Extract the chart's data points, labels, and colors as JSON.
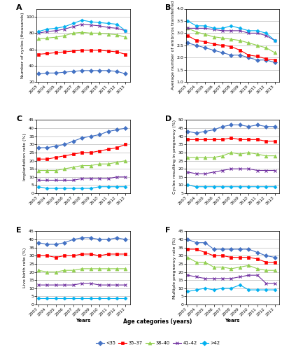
{
  "years": [
    2003,
    2004,
    2005,
    2006,
    2007,
    2008,
    2009,
    2010,
    2011,
    2012,
    2013
  ],
  "colors": {
    "<35": "#4472c4",
    "35-37": "#ff0000",
    "38-40": "#92d050",
    "41-42": "#7030a0",
    ">=42": "#00b0f0"
  },
  "A_ylabel": "Number of cycles (thousands)",
  "A_ylim": [
    20,
    110
  ],
  "A_yticks": [
    20,
    40,
    60,
    80,
    100
  ],
  "A_data": {
    "<35": [
      30,
      31,
      31,
      32,
      33,
      34,
      34,
      34,
      34,
      33,
      30
    ],
    "35-37": [
      54,
      55,
      56,
      57,
      58,
      59,
      59,
      59,
      58,
      57,
      54
    ],
    "38-40": [
      73,
      74,
      75,
      77,
      80,
      81,
      80,
      80,
      79,
      78,
      75
    ],
    "41-42": [
      80,
      82,
      83,
      85,
      88,
      91,
      90,
      89,
      87,
      86,
      83
    ],
    ">=42": [
      82,
      85,
      86,
      88,
      92,
      96,
      94,
      93,
      92,
      91,
      83
    ]
  },
  "B_ylabel": "Average number of embryos transferred",
  "B_ylim": [
    1.0,
    4.0
  ],
  "B_yticks": [
    1.0,
    1.5,
    2.0,
    2.5,
    3.0,
    3.5,
    4.0
  ],
  "B_data": {
    "<35": [
      2.6,
      2.5,
      2.4,
      2.3,
      2.2,
      2.1,
      2.1,
      2.0,
      1.9,
      1.9,
      1.8
    ],
    "35-37": [
      2.9,
      2.7,
      2.65,
      2.55,
      2.5,
      2.45,
      2.3,
      2.1,
      2.05,
      1.95,
      1.9
    ],
    "38-40": [
      3.2,
      3.05,
      2.95,
      2.85,
      2.8,
      2.75,
      2.7,
      2.6,
      2.5,
      2.4,
      2.2
    ],
    "41-42": [
      3.2,
      3.2,
      3.2,
      3.15,
      3.1,
      3.1,
      3.1,
      3.0,
      3.0,
      2.9,
      2.7
    ],
    ">=42": [
      3.5,
      3.3,
      3.3,
      3.2,
      3.2,
      3.3,
      3.2,
      3.1,
      3.1,
      3.0,
      2.7
    ]
  },
  "C_ylabel": "Implantation rate (%)",
  "C_ylim": [
    0,
    45
  ],
  "C_yticks": [
    0,
    5,
    10,
    15,
    20,
    25,
    30,
    35,
    40,
    45
  ],
  "C_data": {
    "<35": [
      28,
      28,
      29,
      30,
      32,
      34,
      35,
      36,
      38,
      39,
      40
    ],
    "35-37": [
      21,
      21,
      22,
      23,
      24,
      25,
      25,
      26,
      27,
      28,
      30
    ],
    "38-40": [
      14,
      14,
      14,
      15,
      16,
      17,
      17,
      18,
      18,
      19,
      20
    ],
    "41-42": [
      8,
      8,
      8,
      8,
      8,
      9,
      9,
      9,
      9,
      10,
      10
    ],
    ">=42": [
      4,
      3,
      3,
      3,
      3,
      3,
      3,
      4,
      4,
      4,
      4
    ]
  },
  "D_ylabel": "Cycles resulting in pregnancy (%)",
  "D_ylim": [
    5,
    50
  ],
  "D_yticks": [
    5,
    10,
    15,
    20,
    25,
    30,
    35,
    40,
    45,
    50
  ],
  "D_data": {
    "<35": [
      43,
      42,
      43,
      44,
      46,
      47,
      47,
      46,
      47,
      46,
      46
    ],
    "35-37": [
      38,
      38,
      38,
      38,
      38,
      39,
      38,
      38,
      38,
      37,
      37
    ],
    "38-40": [
      27,
      27,
      27,
      27,
      28,
      30,
      29,
      30,
      29,
      28,
      28
    ],
    "41-42": [
      18,
      17,
      17,
      18,
      19,
      20,
      20,
      20,
      19,
      19,
      19
    ],
    ">=42": [
      10,
      9,
      9,
      9,
      9,
      9,
      9,
      9,
      9,
      9,
      9
    ]
  },
  "E_ylabel": "Live birth rate (%)",
  "E_ylim": [
    0,
    45
  ],
  "E_yticks": [
    0,
    5,
    10,
    15,
    20,
    25,
    30,
    35,
    40,
    45
  ],
  "E_data": {
    "<35": [
      38,
      37,
      37,
      38,
      40,
      41,
      41,
      40,
      40,
      41,
      40
    ],
    "35-37": [
      30,
      30,
      29,
      30,
      30,
      31,
      31,
      30,
      31,
      31,
      31
    ],
    "38-40": [
      21,
      20,
      20,
      21,
      21,
      22,
      22,
      22,
      22,
      22,
      22
    ],
    "41-42": [
      12,
      12,
      12,
      12,
      12,
      13,
      13,
      12,
      12,
      12,
      12
    ],
    ">=42": [
      4,
      4,
      4,
      4,
      4,
      4,
      4,
      4,
      4,
      4,
      4
    ]
  },
  "F_ylabel": "Multiple pregnancy rate (%)",
  "F_ylim": [
    0,
    45
  ],
  "F_yticks": [
    0,
    5,
    10,
    15,
    20,
    25,
    30,
    35,
    40,
    45
  ],
  "F_data": {
    "<35": [
      40,
      38,
      38,
      34,
      34,
      34,
      34,
      34,
      32,
      30,
      29
    ],
    "35-37": [
      34,
      34,
      32,
      30,
      30,
      29,
      29,
      29,
      28,
      26,
      26
    ],
    "38-40": [
      29,
      26,
      26,
      23,
      23,
      22,
      23,
      24,
      22,
      21,
      21
    ],
    "41-42": [
      18,
      17,
      16,
      16,
      16,
      16,
      17,
      18,
      18,
      13,
      13
    ],
    ">=42": [
      8,
      9,
      10,
      9,
      10,
      10,
      12,
      9,
      9,
      9,
      9
    ]
  },
  "legend_labels": [
    "<35",
    "35–37",
    "38–40",
    "41–42",
    ">42"
  ],
  "panels": [
    "A",
    "B",
    "C",
    "D",
    "E",
    "F"
  ],
  "xlabel": "Years",
  "age_xlabel": "Age categories (years)"
}
